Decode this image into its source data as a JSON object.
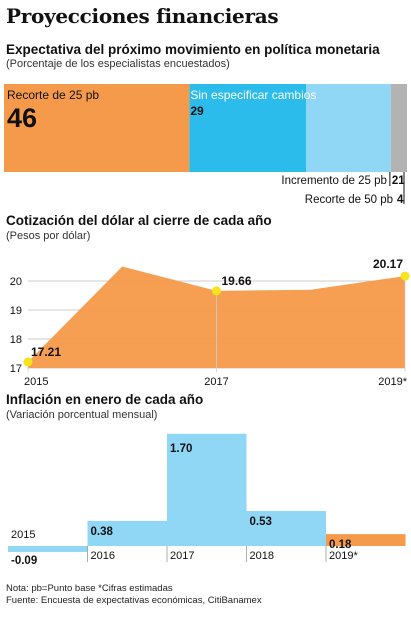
{
  "title": "Proyecciones financieras",
  "sections": [
    {
      "title": "Expectativa del próximo movimiento en política monetaria",
      "subtitle": "(Porcentaje de los especialistas encuestados)"
    },
    {
      "title": "Cotización del dólar al cierre de cada año",
      "subtitle": "(Pesos por dólar)"
    },
    {
      "title": "Inflación en enero de cada año",
      "subtitle": "(Variación porcentual mensual)"
    }
  ],
  "footer": {
    "note": "Nota: pb=Punto base *Cifras estimadas",
    "source": "Fuente: Encuesta de expectativas económicas, CitiBanamex"
  },
  "colors": {
    "orange": "#f59a4a",
    "blue_dark": "#2bbcec",
    "blue_light": "#8fd7f5",
    "gray": "#b3b3b3",
    "marker": "#f7e41c"
  },
  "chart_data": [
    {
      "type": "bar",
      "stacked": true,
      "orientation": "horizontal",
      "categories": [
        "Recorte de 25 pb",
        "Sin especificar cambios",
        "Incremento de 25 pb",
        "Recorte de 50 pb"
      ],
      "values": [
        46,
        29,
        21,
        4
      ],
      "labels": [
        "46",
        "29",
        "21",
        "4"
      ],
      "colors": [
        "#f59a4a",
        "#2bbcec",
        "#8fd7f5",
        "#b3b3b3"
      ]
    },
    {
      "type": "area",
      "x": [
        "2015",
        "2016",
        "2017",
        "2018",
        "2019*"
      ],
      "tick_labels": [
        "2015",
        "2017",
        "2019*"
      ],
      "values": [
        17.21,
        20.5,
        19.66,
        19.7,
        20.17
      ],
      "labeled": [
        {
          "x": "2015",
          "label": "17.21"
        },
        {
          "x": "2017",
          "label": "19.66"
        },
        {
          "x": "2019*",
          "label": "20.17"
        }
      ],
      "ylim": [
        17,
        21
      ],
      "yticks": [
        "17",
        "18",
        "19",
        "20"
      ],
      "grid": true
    },
    {
      "type": "bar",
      "categories": [
        "2015",
        "2016",
        "2017",
        "2018",
        "2019*"
      ],
      "values": [
        -0.09,
        0.38,
        1.7,
        0.53,
        0.18
      ],
      "labels": [
        "-0.09",
        "0.38",
        "1.70",
        "0.53",
        "0.18"
      ],
      "colors": [
        "#8fd7f5",
        "#8fd7f5",
        "#8fd7f5",
        "#8fd7f5",
        "#f59a4a"
      ]
    }
  ]
}
